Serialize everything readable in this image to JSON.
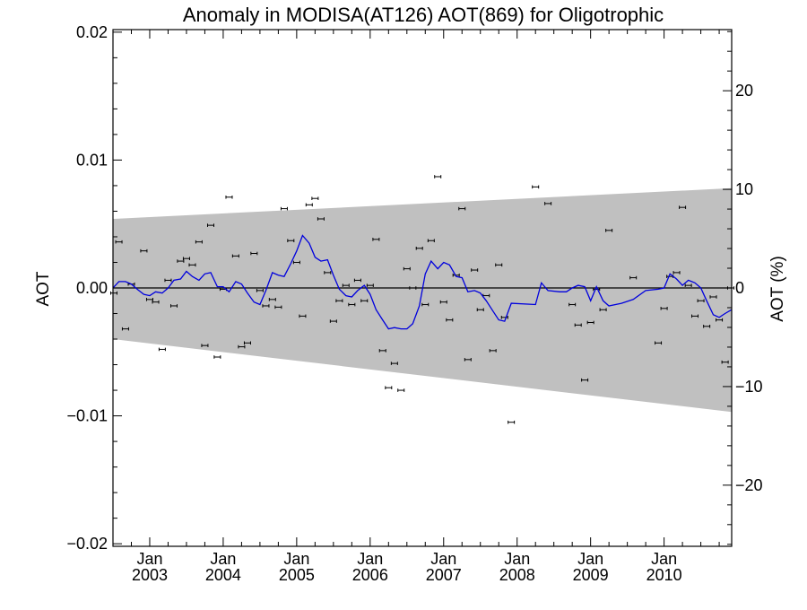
{
  "chart_data": {
    "type": "scatter",
    "title": "Anomaly in MODISA(AT126) AOT(869) for Oligotrophic",
    "ylabel": "AOT",
    "y2label": "AOT (%)",
    "xlabel": "",
    "xlim": [
      2002.5,
      2010.92
    ],
    "ylim": [
      -0.0202,
      0.0202
    ],
    "y2lim": [
      -26.2,
      26.2
    ],
    "x_ticks": [
      {
        "value": 2003.0,
        "top": "Jan",
        "bottom": "2003"
      },
      {
        "value": 2004.0,
        "top": "Jan",
        "bottom": "2004"
      },
      {
        "value": 2005.0,
        "top": "Jan",
        "bottom": "2005"
      },
      {
        "value": 2006.0,
        "top": "Jan",
        "bottom": "2006"
      },
      {
        "value": 2007.0,
        "top": "Jan",
        "bottom": "2007"
      },
      {
        "value": 2008.0,
        "top": "Jan",
        "bottom": "2008"
      },
      {
        "value": 2009.0,
        "top": "Jan",
        "bottom": "2009"
      },
      {
        "value": 2010.0,
        "top": "Jan",
        "bottom": "2010"
      }
    ],
    "y_ticks": [
      {
        "value": 0.02,
        "label": "0.02"
      },
      {
        "value": 0.01,
        "label": "0.01"
      },
      {
        "value": 0.0,
        "label": "0.00"
      },
      {
        "value": -0.01,
        "label": "−0.01"
      },
      {
        "value": -0.02,
        "label": "−0.02"
      }
    ],
    "y2_ticks": [
      {
        "value": 20,
        "label": "20"
      },
      {
        "value": 10,
        "label": "10"
      },
      {
        "value": 0,
        "label": "0"
      },
      {
        "value": -10,
        "label": "−10"
      },
      {
        "value": -20,
        "label": "−20"
      }
    ],
    "band": {
      "x": [
        2002.5,
        2010.92
      ],
      "upper": [
        0.0054,
        0.0078
      ],
      "lower": [
        -0.004,
        -0.0097
      ],
      "color": "#c0c0c0"
    },
    "zero_line": {
      "y": 0.0,
      "color": "#000000"
    },
    "series": [
      {
        "kind": "points",
        "color": "#000000",
        "x": [
          2002.5,
          2002.58,
          2002.67,
          2002.75,
          2002.92,
          2003.0,
          2003.08,
          2003.17,
          2003.25,
          2003.33,
          2003.42,
          2003.5,
          2003.58,
          2003.67,
          2003.75,
          2003.83,
          2003.92,
          2004.0,
          2004.08,
          2004.17,
          2004.25,
          2004.33,
          2004.42,
          2004.5,
          2004.58,
          2004.67,
          2004.75,
          2004.83,
          2004.92,
          2005.0,
          2005.08,
          2005.17,
          2005.25,
          2005.33,
          2005.42,
          2005.5,
          2005.58,
          2005.67,
          2005.75,
          2005.83,
          2005.92,
          2006.0,
          2006.08,
          2006.17,
          2006.25,
          2006.33,
          2006.42,
          2006.5,
          2006.58,
          2006.67,
          2006.75,
          2006.83,
          2006.92,
          2007.0,
          2007.08,
          2007.17,
          2007.25,
          2007.33,
          2007.42,
          2007.5,
          2007.58,
          2007.67,
          2007.75,
          2007.83,
          2007.92,
          2008.25,
          2008.42,
          2008.75,
          2008.83,
          2008.92,
          2009.0,
          2009.08,
          2009.17,
          2009.25,
          2009.58,
          2009.92,
          2010.0,
          2010.08,
          2010.17,
          2010.25,
          2010.33,
          2010.42,
          2010.5,
          2010.58,
          2010.67,
          2010.75,
          2010.83,
          2010.92
        ],
        "y": [
          -0.0004,
          0.0036,
          -0.0032,
          0.0003,
          0.0029,
          -0.0009,
          -0.0011,
          -0.0048,
          0.0006,
          -0.0014,
          0.0021,
          0.0023,
          0.0018,
          0.0036,
          -0.0045,
          0.0049,
          -0.0054,
          -0.0001,
          0.0071,
          0.0025,
          -0.0046,
          -0.0043,
          0.0027,
          -0.0002,
          -0.0014,
          -0.0009,
          -0.0015,
          0.0062,
          0.0037,
          0.002,
          -0.0022,
          0.0065,
          0.007,
          0.0054,
          0.0012,
          -0.0026,
          -0.001,
          0.0002,
          -0.0013,
          0.0006,
          -0.001,
          0.0002,
          0.0038,
          -0.0049,
          -0.0078,
          -0.0059,
          -0.008,
          0.0015,
          0.0,
          0.0031,
          -0.0013,
          0.0037,
          0.0087,
          -0.0011,
          -0.0025,
          0.001,
          0.0062,
          -0.0056,
          0.0014,
          -0.0017,
          -0.0006,
          -0.0049,
          0.0018,
          -0.0023,
          -0.0105,
          0.0079,
          0.0066,
          -0.0013,
          -0.0029,
          -0.0072,
          -0.0027,
          -0.0001,
          -0.0017,
          0.0045,
          0.0008,
          -0.0043,
          -0.0016,
          0.0009,
          0.0012,
          0.0063,
          0.0002,
          -0.0022,
          -0.001,
          -0.003,
          -0.0007,
          -0.0025,
          -0.0058,
          0.0
        ]
      },
      {
        "kind": "line",
        "color": "#0000dd",
        "x": [
          2002.5,
          2002.58,
          2002.67,
          2002.75,
          2002.83,
          2002.92,
          2003.0,
          2003.08,
          2003.17,
          2003.25,
          2003.33,
          2003.42,
          2003.5,
          2003.58,
          2003.67,
          2003.75,
          2003.83,
          2003.92,
          2004.0,
          2004.08,
          2004.17,
          2004.25,
          2004.33,
          2004.42,
          2004.5,
          2004.58,
          2004.67,
          2004.75,
          2004.83,
          2004.92,
          2005.0,
          2005.08,
          2005.17,
          2005.25,
          2005.33,
          2005.42,
          2005.5,
          2005.58,
          2005.67,
          2005.75,
          2005.83,
          2005.92,
          2006.0,
          2006.08,
          2006.17,
          2006.25,
          2006.33,
          2006.42,
          2006.5,
          2006.58,
          2006.67,
          2006.75,
          2006.83,
          2006.92,
          2007.0,
          2007.08,
          2007.17,
          2007.25,
          2007.33,
          2007.42,
          2007.5,
          2007.58,
          2007.67,
          2007.75,
          2007.83,
          2007.92,
          2008.25,
          2008.33,
          2008.42,
          2008.58,
          2008.67,
          2008.75,
          2008.83,
          2008.92,
          2009.0,
          2009.08,
          2009.17,
          2009.25,
          2009.42,
          2009.58,
          2009.75,
          2009.92,
          2010.0,
          2010.08,
          2010.17,
          2010.25,
          2010.33,
          2010.42,
          2010.5,
          2010.58,
          2010.67,
          2010.75,
          2010.83,
          2010.92
        ],
        "y": [
          0.0,
          0.0005,
          0.0005,
          0.0003,
          -0.0001,
          -0.0005,
          -0.0006,
          -0.0003,
          -0.0004,
          0.0,
          0.0006,
          0.0007,
          0.0013,
          0.0009,
          0.0006,
          0.0011,
          0.0012,
          0.0001,
          0.0001,
          -0.0003,
          0.0005,
          0.0003,
          -0.0004,
          -0.0011,
          -0.0013,
          -0.0002,
          0.0012,
          0.001,
          0.0009,
          0.0019,
          0.0029,
          0.0041,
          0.0035,
          0.0024,
          0.0021,
          0.0022,
          0.001,
          -0.0001,
          -0.0006,
          -0.0007,
          -0.0002,
          0.0002,
          -0.0005,
          -0.0017,
          -0.0025,
          -0.0032,
          -0.0031,
          -0.0032,
          -0.0032,
          -0.0028,
          -0.0014,
          0.0011,
          0.0021,
          0.0015,
          0.002,
          0.0018,
          0.0009,
          0.0008,
          -0.0003,
          -0.0002,
          -0.0004,
          -0.001,
          -0.0018,
          -0.0025,
          -0.0026,
          -0.0012,
          -0.0013,
          0.0004,
          -0.0002,
          -0.0003,
          -0.0003,
          0.0,
          0.0002,
          0.0001,
          -0.001,
          0.0001,
          -0.001,
          -0.0014,
          -0.0012,
          -0.0009,
          -0.0002,
          -0.0001,
          0.0,
          0.0011,
          0.0007,
          0.0002,
          0.0006,
          0.0004,
          0.0,
          -0.001,
          -0.0021,
          -0.0023,
          -0.002,
          -0.0017
        ]
      }
    ],
    "grid": false,
    "legend": "none"
  }
}
